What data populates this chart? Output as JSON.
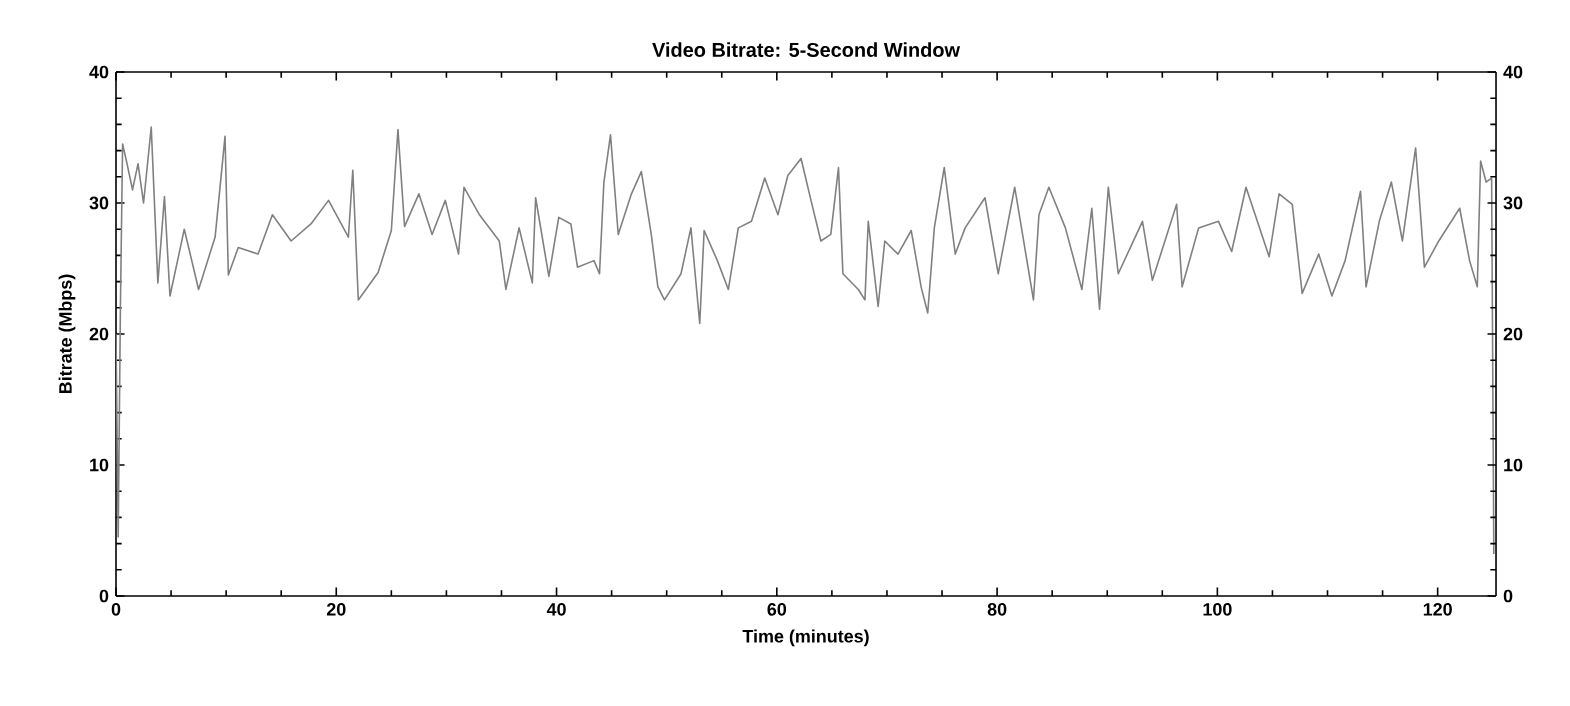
{
  "chart_data": {
    "type": "line",
    "title": "Video Bitrate: 5-Second Window",
    "xlabel": "Time (minutes)",
    "ylabel": "Bitrate (Mbps)",
    "xlim": [
      0,
      125.3
    ],
    "xticks": [
      0,
      20,
      40,
      60,
      80,
      100,
      120
    ],
    "ylim": [
      0,
      40
    ],
    "yticks": [
      0,
      10,
      20,
      30,
      40
    ],
    "y2lim": [
      0,
      40
    ],
    "y2ticks": [
      0,
      10,
      20,
      30,
      40
    ],
    "x": [
      0,
      0.2,
      0.4,
      0.6,
      1,
      1.5,
      2,
      2.5,
      3.2,
      3.8,
      4.4,
      4.9,
      6.2,
      7.5,
      9,
      9.9,
      10.2,
      11.1,
      12.9,
      14.2,
      15.9,
      17.7,
      19.3,
      21.1,
      21.5,
      22,
      23.8,
      25,
      25.6,
      26.2,
      27.5,
      28.7,
      29.9,
      31.1,
      31.6,
      33,
      34.8,
      35.4,
      36.6,
      37.8,
      38.1,
      39.3,
      40.2,
      41.3,
      41.9,
      43.4,
      43.9,
      44.3,
      44.9,
      45.6,
      46.8,
      47.7,
      48.6,
      49.2,
      49.8,
      51.3,
      52.2,
      53,
      53.4,
      54.6,
      55.6,
      56.5,
      57.7,
      58.9,
      60.1,
      61,
      62.2,
      63.1,
      64,
      64.9,
      65.6,
      66,
      67.4,
      68,
      68.3,
      69.2,
      69.8,
      71,
      72.2,
      73.1,
      73.7,
      74.3,
      75.2,
      76.2,
      77.1,
      78.9,
      80.1,
      81.6,
      83.3,
      83.8,
      84.7,
      86.2,
      87.7,
      88.6,
      89.3,
      90.1,
      91,
      93.2,
      94.1,
      96.3,
      96.8,
      98.3,
      100.1,
      101.3,
      102.6,
      104.7,
      105.6,
      106.8,
      107.7,
      109.2,
      110.4,
      111.6,
      113,
      113.5,
      114.7,
      115.8,
      116.8,
      118,
      118.8,
      120.1,
      122,
      122.9,
      123.6,
      123.9,
      124.4,
      124.9,
      125.1
    ],
    "series": [
      {
        "color": "#808080",
        "values": [
          20,
          4.5,
          22,
          34.5,
          33,
          31,
          33,
          30,
          35.8,
          23.9,
          30.5,
          22.9,
          28,
          23.4,
          27.4,
          35.1,
          24.5,
          26.6,
          26.1,
          29.1,
          27.1,
          28.4,
          30.2,
          27.4,
          32.5,
          22.6,
          24.7,
          27.9,
          35.6,
          28.2,
          30.7,
          27.6,
          30.2,
          26.1,
          31.2,
          29.1,
          27.1,
          23.4,
          28.1,
          23.9,
          30.4,
          24.4,
          28.9,
          28.4,
          25.1,
          25.6,
          24.6,
          31.6,
          35.2,
          27.6,
          30.7,
          32.4,
          27.6,
          23.6,
          22.6,
          24.6,
          28.1,
          20.8,
          27.9,
          25.6,
          23.4,
          28.1,
          28.6,
          31.9,
          29.1,
          32.1,
          33.4,
          30.2,
          27.1,
          27.6,
          32.7,
          24.6,
          23.4,
          22.6,
          28.6,
          22.1,
          27.1,
          26.1,
          27.9,
          23.6,
          21.6,
          28.1,
          32.7,
          26.1,
          28.1,
          30.4,
          24.6,
          31.2,
          22.6,
          29.1,
          31.2,
          28.1,
          23.4,
          29.6,
          21.9,
          31.2,
          24.6,
          28.6,
          24.1,
          29.9,
          23.6,
          28.1,
          28.6,
          26.3,
          31.2,
          25.9,
          30.7,
          29.9,
          23.1,
          26.1,
          22.9,
          25.6,
          30.9,
          23.6,
          28.6,
          31.6,
          27.1,
          34.2,
          25.1,
          27.1,
          29.6,
          25.6,
          23.6,
          33.2,
          31.6,
          31.9,
          3.2
        ]
      }
    ]
  }
}
